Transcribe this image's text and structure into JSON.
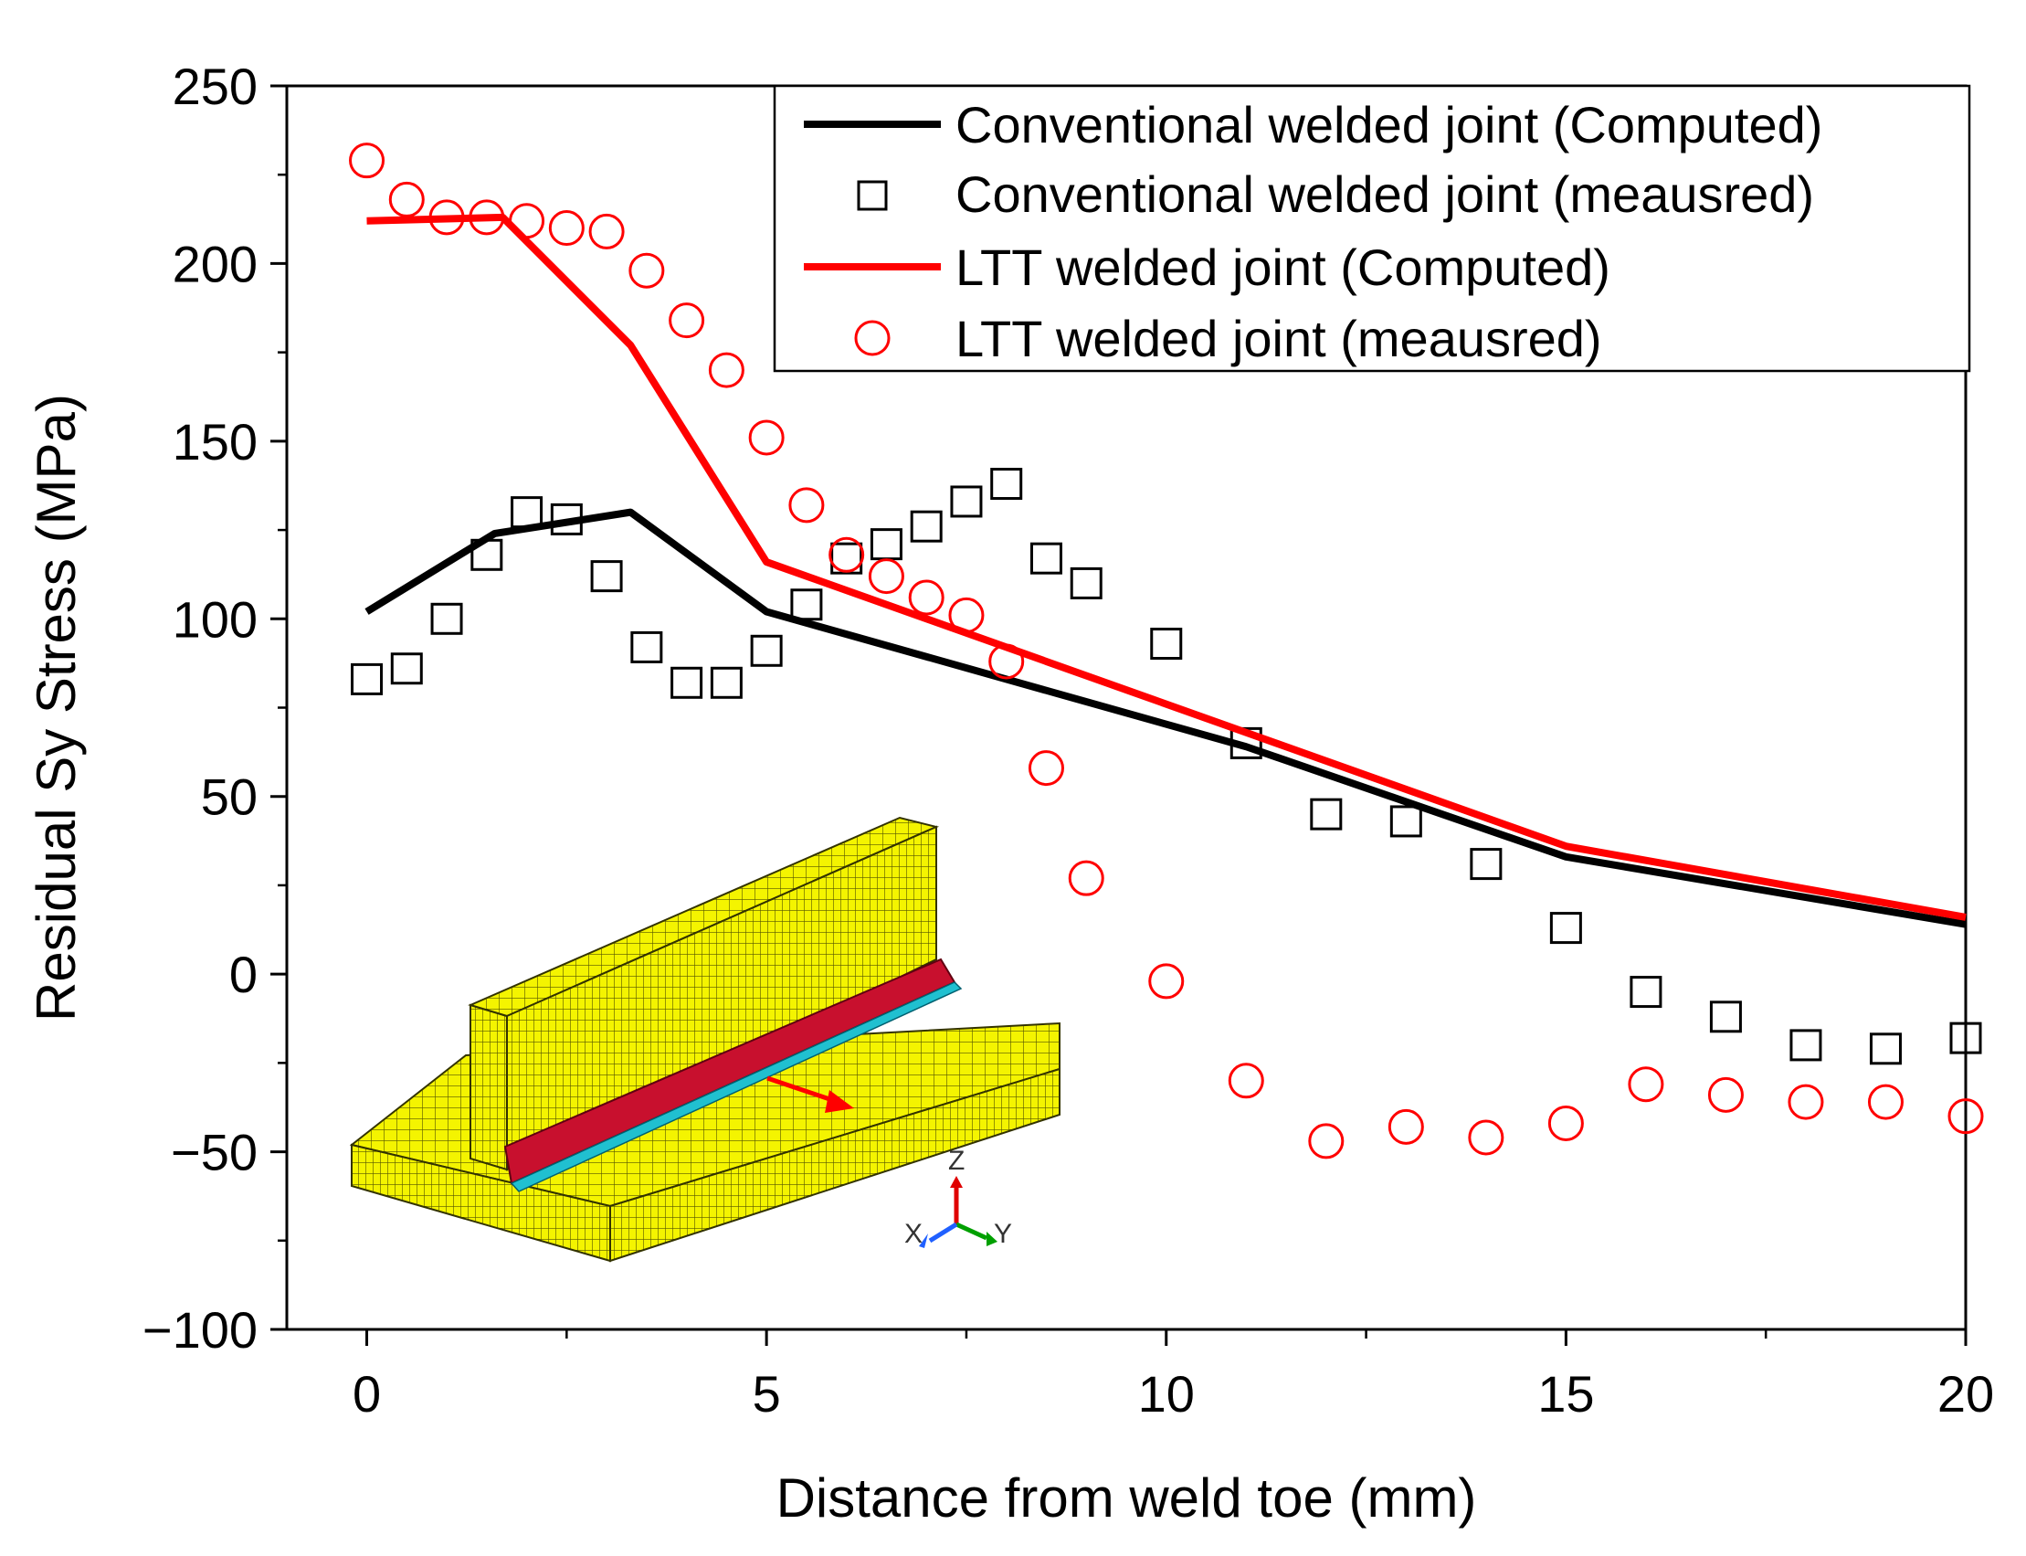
{
  "chart_data": {
    "type": "line",
    "title": "",
    "xlabel": "Distance from weld toe (mm)",
    "ylabel": "Residual Sy Stress (MPa)",
    "xlim": [
      -1,
      20
    ],
    "ylim": [
      -100,
      250
    ],
    "xticks": [
      0,
      5,
      10,
      15,
      20
    ],
    "yticks": [
      -100,
      -50,
      0,
      50,
      100,
      150,
      200,
      250
    ],
    "xtick_labels": [
      "0",
      "5",
      "10",
      "15",
      "20"
    ],
    "ytick_labels": [
      "−100",
      "−50",
      "0",
      "50",
      "100",
      "150",
      "200",
      "250"
    ],
    "grid": false,
    "legend_position": "top-right",
    "series": [
      {
        "name": "Conventional welded joint (Computed)",
        "style": "line",
        "color": "#000000",
        "x": [
          0,
          1.6,
          3.3,
          5,
          11,
          15,
          20
        ],
        "y": [
          102,
          124,
          130,
          102,
          64,
          33,
          14
        ]
      },
      {
        "name": "Conventional welded joint (meausred)",
        "style": "square",
        "color": "#000000",
        "x": [
          0,
          0.5,
          1,
          1.5,
          2,
          2.5,
          3,
          3.5,
          4,
          4.5,
          5,
          5.5,
          6,
          6.5,
          7,
          7.5,
          8,
          8.5,
          9,
          10,
          11,
          12,
          13,
          14,
          15,
          16,
          17,
          18,
          19,
          20
        ],
        "y": [
          83,
          86,
          100,
          118,
          130,
          128,
          112,
          92,
          82,
          82,
          91,
          104,
          117,
          121,
          126,
          133,
          138,
          117,
          110,
          93,
          65,
          45,
          43,
          31,
          13,
          -5,
          -12,
          -20,
          -21,
          -18
        ]
      },
      {
        "name": "LTT welded joint (Computed)",
        "style": "line",
        "color": "#ff0000",
        "x": [
          0,
          1.7,
          3.3,
          5,
          11,
          15,
          20
        ],
        "y": [
          212,
          213,
          177,
          116,
          68,
          36,
          16
        ]
      },
      {
        "name": "LTT welded joint (meausred)",
        "style": "circle",
        "color": "#ff0000",
        "x": [
          0,
          0.5,
          1,
          1.5,
          2,
          2.5,
          3,
          3.5,
          4,
          4.5,
          5,
          5.5,
          6,
          6.5,
          7,
          7.5,
          8,
          8.5,
          9,
          10,
          11,
          12,
          13,
          14,
          15,
          16,
          17,
          18,
          19,
          20
        ],
        "y": [
          229,
          218,
          213,
          213,
          212,
          210,
          209,
          198,
          184,
          170,
          151,
          132,
          118,
          112,
          106,
          101,
          88,
          58,
          27,
          -2,
          -30,
          -47,
          -43,
          -46,
          -42,
          -31,
          -34,
          -36,
          -36,
          -40
        ]
      }
    ],
    "inset": {
      "description_axes": [
        "Z",
        "X",
        "Y"
      ]
    }
  }
}
